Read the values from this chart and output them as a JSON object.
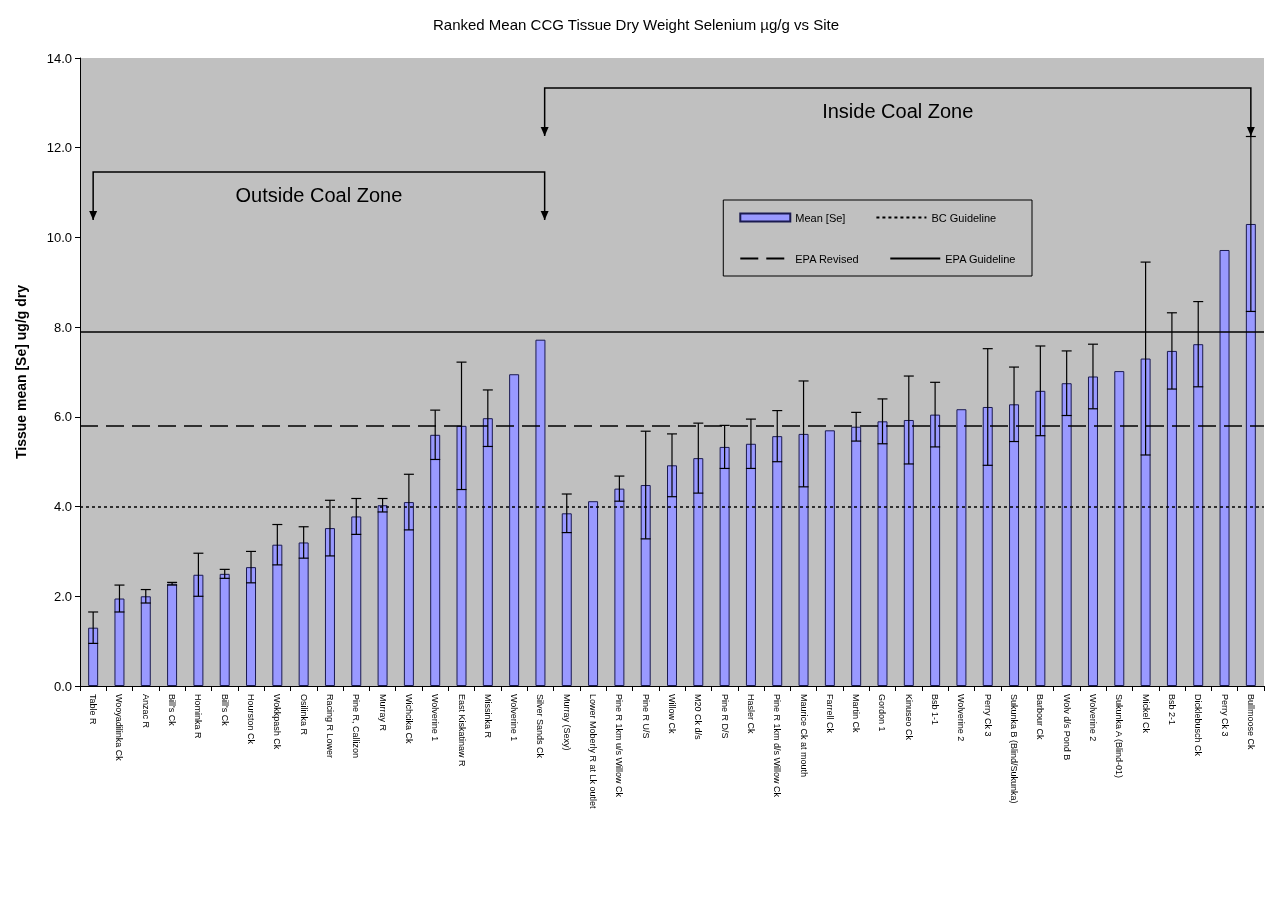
{
  "chart_data": {
    "type": "bar",
    "title": "Ranked Mean CCG Tissue Dry Weight Selenium µg/g vs Site",
    "ylabel": "Tissue mean [Se] ug/g dry",
    "categories": [
      "Table R",
      "Wooyadilinka Ck",
      "Anzac R",
      "Bill's Ck",
      "Hominka R",
      "Bill's Ck",
      "Hourston Ck",
      "Wokkpash Ck",
      "Osilinka R",
      "Racing R Lower",
      "Pine R, Callizon",
      "Murray R",
      "Wichcika Ck",
      "Wolverine 1",
      "East Kiskatinaw R",
      "Missinka R",
      "Wolverine 1",
      "Silver Sands Ck",
      "Murray (Sexy)",
      "Lower Moberly R at Lk outlet",
      "Pine R 1km u/s Willow Ck",
      "Pine R U/S",
      "Willow Ck",
      "M20 Ck d/s",
      "Pine R D/S",
      "Hasler Ck",
      "Pine R 1km d/s Willow Ck",
      "Maurice Ck at mouth",
      "Farrell Ck",
      "Martin Ck",
      "Gordon 1",
      "Kinuseo Ck",
      "Bsb 1-1",
      "Wolverine 2",
      "Perry Ck 3",
      "Sukunka B (Blind/Sukunka)",
      "Barbour Ck",
      "Wolv d/s Pond B",
      "Wolverine 2",
      "Sukunka A (Blind-01)",
      "Mickel Ck",
      "Bsb 2-1",
      "Dicklebusch Ck",
      "Perry Ck 3",
      "Bullmoose Ck"
    ],
    "series": [
      {
        "name": "Mean [Se]",
        "color": "#9999ff",
        "values": [
          1.3,
          1.95,
          2.0,
          2.28,
          2.48,
          2.5,
          2.65,
          3.15,
          3.2,
          3.52,
          3.78,
          4.03,
          4.1,
          5.6,
          5.8,
          5.97,
          6.95,
          7.72,
          3.85,
          4.12,
          4.4,
          4.48,
          4.92,
          5.08,
          5.33,
          5.4,
          5.57,
          5.62,
          5.7,
          5.78,
          5.9,
          5.93,
          6.05,
          6.17,
          6.22,
          6.28,
          6.58,
          6.75,
          6.9,
          7.02,
          7.3,
          7.47,
          7.62,
          9.72,
          10.3
        ],
        "errors": [
          0.35,
          0.3,
          0.15,
          0.03,
          0.48,
          0.1,
          0.35,
          0.45,
          0.35,
          0.62,
          0.4,
          0.15,
          0.62,
          0.55,
          1.42,
          0.63,
          null,
          null,
          0.43,
          null,
          0.28,
          1.2,
          0.7,
          0.78,
          0.48,
          0.55,
          0.57,
          1.18,
          null,
          0.32,
          0.5,
          0.98,
          0.72,
          null,
          1.3,
          0.83,
          1.0,
          0.72,
          0.72,
          null,
          2.15,
          0.85,
          0.95,
          null,
          1.95
        ]
      }
    ],
    "ref_lines": [
      {
        "axis": "y",
        "value": 4.0,
        "label": "BC Guideline",
        "line_style": "dotted",
        "color": "#000000"
      },
      {
        "axis": "y",
        "value": 5.8,
        "label": "EPA Revised",
        "line_style": "dashed",
        "color": "#000000"
      },
      {
        "axis": "y",
        "value": 7.9,
        "label": "EPA Guideline",
        "line_style": "solid",
        "color": "#000000"
      }
    ],
    "annotations": [
      "Outside Coal Zone",
      "Inside Coal Zone"
    ],
    "ylim": [
      0,
      14
    ],
    "yticks": [
      {
        "value": 0,
        "label": "0.0"
      },
      {
        "value": 2,
        "label": "2.0"
      },
      {
        "value": 4,
        "label": "4.0"
      },
      {
        "value": 6,
        "label": "6.0"
      },
      {
        "value": 8,
        "label": "8.0"
      },
      {
        "value": 10,
        "label": "10.0"
      },
      {
        "value": 12,
        "label": "12.0"
      },
      {
        "value": 14,
        "label": "14.0"
      }
    ],
    "grid": false,
    "legend": "top right"
  }
}
